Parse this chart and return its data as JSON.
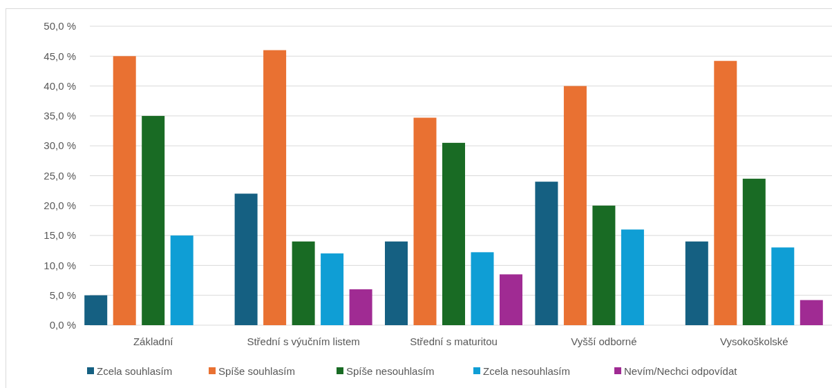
{
  "chart_data": {
    "type": "bar",
    "categories": [
      "Základní",
      "Střední s výučním listem",
      "Střední s maturitou",
      "Vyšší odborné",
      "Vysokoškolské"
    ],
    "series": [
      {
        "name": "Zcela souhlasím",
        "color": "#156082",
        "values": [
          5,
          22,
          14,
          24,
          14
        ]
      },
      {
        "name": "Spíše souhlasím",
        "color": "#e97132",
        "values": [
          45,
          46,
          34.7,
          40,
          44.2
        ]
      },
      {
        "name": "Spíše nesouhlasím",
        "color": "#196b24",
        "values": [
          35,
          14,
          30.5,
          20,
          24.5
        ]
      },
      {
        "name": "Zcela nesouhlasím",
        "color": "#0f9ed5",
        "values": [
          15,
          12,
          12.2,
          16,
          13
        ]
      },
      {
        "name": "Nevím/Nechci odpovídat",
        "color": "#a02b93",
        "values": [
          null,
          6,
          8.5,
          null,
          4.2
        ]
      }
    ],
    "ylim": [
      0,
      50
    ],
    "yticks": [
      {
        "value": 0,
        "label": "0,0 %"
      },
      {
        "value": 5,
        "label": "5,0 %"
      },
      {
        "value": 10,
        "label": "10,0 %"
      },
      {
        "value": 15,
        "label": "15,0 %"
      },
      {
        "value": 20,
        "label": "20,0 %"
      },
      {
        "value": 25,
        "label": "25,0 %"
      },
      {
        "value": 30,
        "label": "30,0 %"
      },
      {
        "value": 35,
        "label": "35,0 %"
      },
      {
        "value": 40,
        "label": "40,0 %"
      },
      {
        "value": 45,
        "label": "45,0 %"
      },
      {
        "value": 50,
        "label": "50,0 %"
      }
    ],
    "grid": "y",
    "legend": "bottom"
  }
}
